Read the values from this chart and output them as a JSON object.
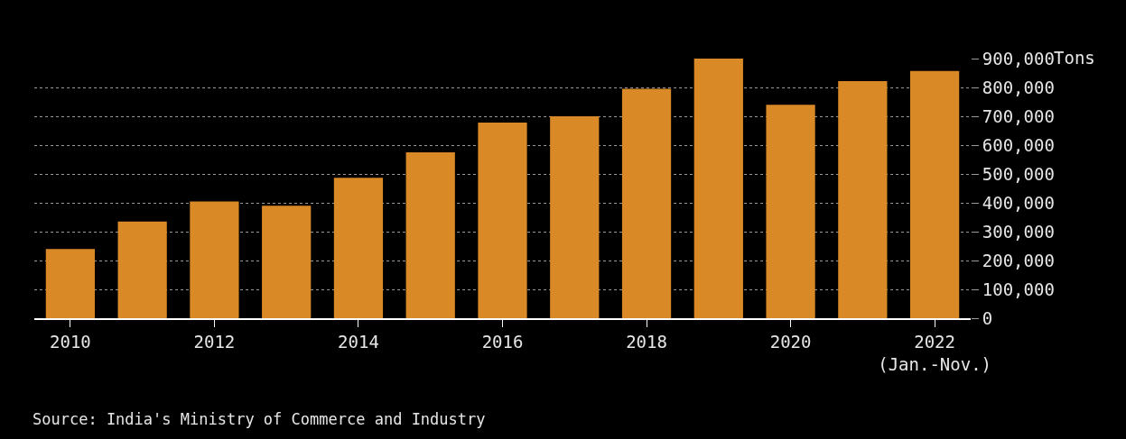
{
  "chart_data": {
    "type": "bar",
    "ylabel": "Tons",
    "categories": [
      "2010",
      null,
      "2012",
      null,
      "2014",
      null,
      "2016",
      null,
      "2018",
      null,
      "2020",
      null,
      "2022\n(Jan.-Nov.)"
    ],
    "values": [
      240000,
      335000,
      405000,
      390000,
      487000,
      575000,
      678000,
      700000,
      795000,
      900000,
      740000,
      822000,
      857000
    ],
    "color": "#d98a26",
    "ylim": [
      0,
      900000
    ],
    "yticks": [
      {
        "value": 0,
        "label": "0"
      },
      {
        "value": 100000,
        "label": "100,000"
      },
      {
        "value": 200000,
        "label": "200,000"
      },
      {
        "value": 300000,
        "label": "300,000"
      },
      {
        "value": 400000,
        "label": "400,000"
      },
      {
        "value": 500000,
        "label": "500,000"
      },
      {
        "value": 600000,
        "label": "600,000"
      },
      {
        "value": 700000,
        "label": "700,000"
      },
      {
        "value": 800000,
        "label": "800,000"
      },
      {
        "value": 900000,
        "label": "900,000"
      }
    ],
    "grid": "y",
    "annotations": [
      "Source: India's Ministry of Commerce and Industry"
    ]
  }
}
